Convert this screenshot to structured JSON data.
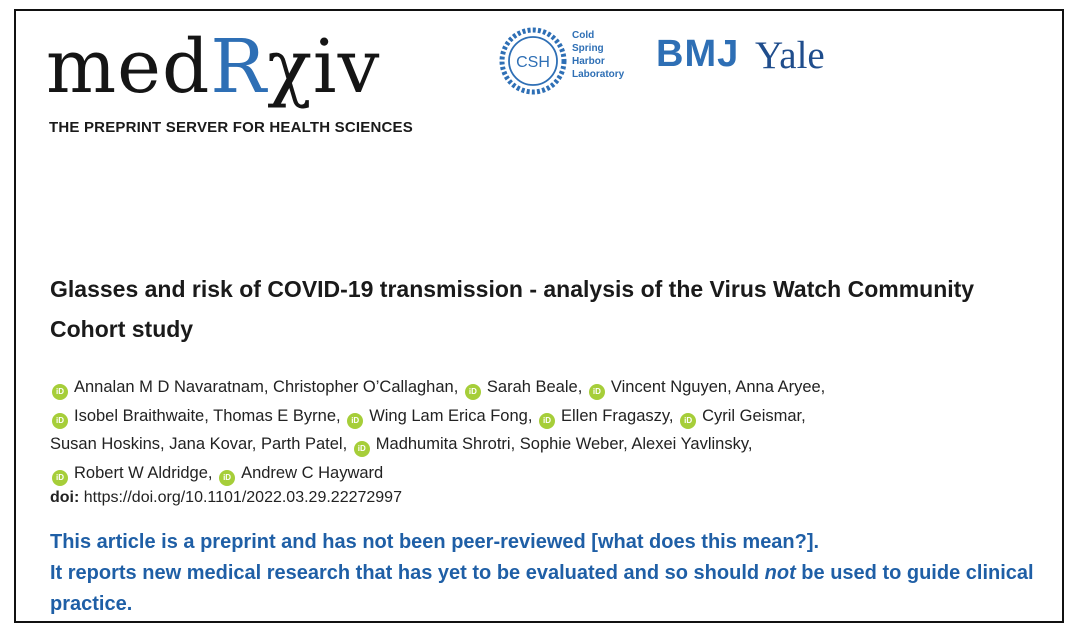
{
  "logo": {
    "med": "med",
    "r": "R",
    "chi": "χ",
    "iv": "iv",
    "tagline": "THE PREPRINT SERVER FOR HEALTH SCIENCES"
  },
  "partners": {
    "csh_badge": "CSH",
    "csh_lines": [
      "Cold",
      "Spring",
      "Harbor",
      "Laboratory"
    ],
    "bmj": "BMJ",
    "yale": "Yale"
  },
  "article": {
    "title": "Glasses and risk of COVID-19 transmission - analysis of the Virus Watch Community Cohort study",
    "orcid_label": "iD",
    "authors": [
      {
        "name": "Annalan M D Navaratnam,",
        "orcid": true
      },
      {
        "name": "Christopher O’Callaghan,",
        "orcid": false
      },
      {
        "name": "Sarah Beale,",
        "orcid": true
      },
      {
        "name": "Vincent Nguyen,",
        "orcid": true
      },
      {
        "name": "Anna Aryee,",
        "orcid": false
      },
      {
        "name": "Isobel Braithwaite,",
        "orcid": true
      },
      {
        "name": "Thomas E Byrne,",
        "orcid": false
      },
      {
        "name": "Wing Lam Erica Fong,",
        "orcid": true
      },
      {
        "name": "Ellen Fragaszy,",
        "orcid": true
      },
      {
        "name": "Cyril Geismar,",
        "orcid": true
      },
      {
        "name": "Susan Hoskins,",
        "orcid": false
      },
      {
        "name": "Jana Kovar,",
        "orcid": false
      },
      {
        "name": "Parth Patel,",
        "orcid": false
      },
      {
        "name": "Madhumita Shrotri,",
        "orcid": true
      },
      {
        "name": "Sophie Weber,",
        "orcid": false
      },
      {
        "name": "Alexei Yavlinsky,",
        "orcid": false
      },
      {
        "name": "Robert W Aldridge,",
        "orcid": true
      },
      {
        "name": "Andrew C Hayward",
        "orcid": true
      }
    ],
    "doi_label": "doi:",
    "doi_value": "https://doi.org/10.1101/2022.03.29.22272997"
  },
  "notice": {
    "part1": "This article is a preprint and has not been peer-reviewed ",
    "link": "[what does this mean?]",
    "part2": ".",
    "line2a": "It reports new medical research that has yet to be evaluated and so should ",
    "emph": "not",
    "line2b": " be used to guide clinical practice."
  }
}
